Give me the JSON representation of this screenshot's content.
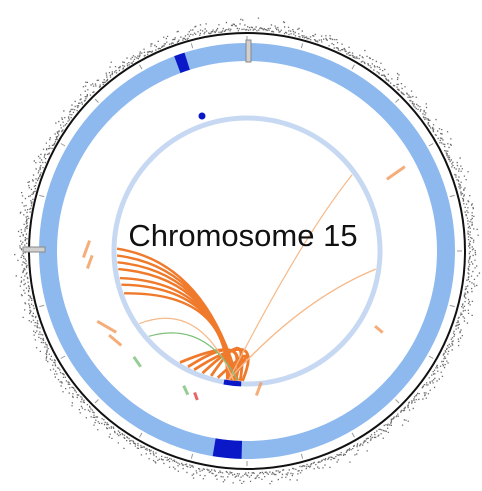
{
  "title": "Chromosome 15",
  "colors": {
    "outer_band": "#8db9ef",
    "outer_band_highlight": "#0a18c8",
    "inner_ring": "#c7d8f2",
    "inner_ring_highlight": "#0a18c8",
    "link_main": "#f07a2c",
    "link_faint": "#f6b989",
    "link_green": "#7cc07a",
    "density_track": "#3a3a3a",
    "label_orange": "#f29a5a"
  },
  "icons": [
    "chromosome-ideogram-ring",
    "coverage-density-track",
    "link-arcs"
  ]
}
